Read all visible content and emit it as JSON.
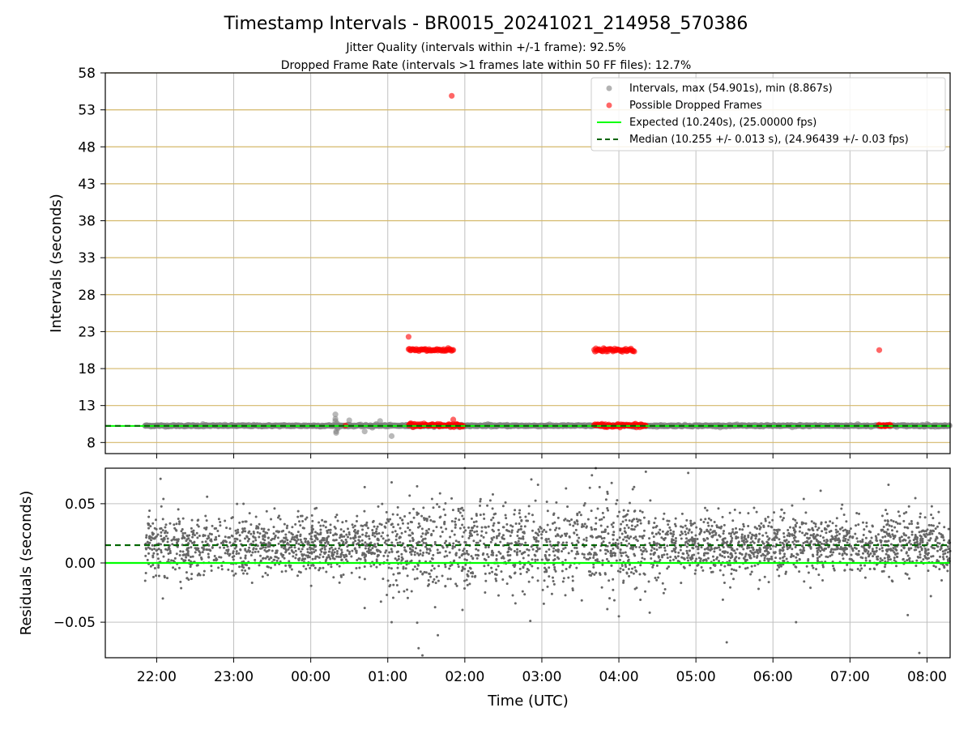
{
  "chart_data": [
    {
      "type": "scatter",
      "title": "Timestamp Intervals - BR0015_20241021_214958_570386",
      "subtitle_lines": [
        "Jitter Quality (intervals within +/-1 frame): 92.5%",
        "Dropped Frame Rate (intervals >1 frames late within 50 FF files): 12.7%"
      ],
      "ylabel": "Intervals (seconds)",
      "xlabel": "",
      "xlim": [
        21.333,
        32.3
      ],
      "ylim": [
        6.5,
        58
      ],
      "x_ticks": [
        22,
        23,
        24,
        25,
        26,
        27,
        28,
        29,
        30,
        31,
        32
      ],
      "x_tick_labels": [
        "22:00",
        "23:00",
        "00:00",
        "01:00",
        "02:00",
        "03:00",
        "04:00",
        "05:00",
        "06:00",
        "07:00",
        "08:00"
      ],
      "y_ticks": [
        8,
        13,
        18,
        23,
        28,
        33,
        38,
        43,
        48,
        53,
        58
      ],
      "y_tick_labels": [
        "8",
        "13",
        "18",
        "23",
        "28",
        "33",
        "38",
        "43",
        "48",
        "53",
        "58"
      ],
      "grid": true,
      "legend_position": "top-right",
      "series": [
        {
          "name": "Intervals, max (54.901s), min (8.867s)",
          "kind": "points",
          "color": "#808080",
          "points": [
            [
              21.85,
              10.27
            ],
            [
              22.1,
              10.25
            ],
            [
              22.33,
              10.28
            ],
            [
              22.6,
              10.5
            ],
            [
              22.75,
              10.3
            ],
            [
              23.0,
              10.24
            ],
            [
              23.25,
              10.3
            ],
            [
              23.5,
              10.29
            ],
            [
              23.75,
              10.27
            ],
            [
              24.0,
              10.3
            ],
            [
              24.2,
              10.3
            ],
            [
              24.32,
              11.8
            ],
            [
              24.32,
              11.2
            ],
            [
              24.32,
              10.9
            ],
            [
              24.33,
              9.5
            ],
            [
              24.33,
              9.3
            ],
            [
              24.34,
              10.6
            ],
            [
              24.35,
              9.9
            ],
            [
              24.48,
              10.4
            ],
            [
              24.5,
              11.0
            ],
            [
              24.7,
              9.5
            ],
            [
              24.8,
              10.0
            ],
            [
              24.85,
              10.5
            ],
            [
              24.9,
              10.9
            ],
            [
              24.95,
              10.3
            ],
            [
              25.05,
              8.87
            ],
            [
              25.15,
              10.3
            ],
            [
              25.6,
              10.3
            ],
            [
              25.95,
              10.26
            ],
            [
              26.2,
              10.3
            ],
            [
              26.3,
              10.5
            ],
            [
              26.55,
              10.4
            ],
            [
              26.9,
              10.29
            ],
            [
              27.05,
              10.3
            ],
            [
              27.4,
              10.31
            ],
            [
              27.7,
              10.3
            ],
            [
              28.4,
              10.27
            ],
            [
              28.7,
              10.3
            ],
            [
              29.0,
              10.28
            ],
            [
              29.3,
              10.3
            ],
            [
              29.6,
              10.26
            ],
            [
              29.9,
              10.3
            ],
            [
              30.25,
              10.05
            ],
            [
              30.35,
              10.4
            ],
            [
              30.55,
              10.4
            ],
            [
              30.85,
              10.3
            ],
            [
              31.1,
              10.5
            ],
            [
              31.7,
              10.3
            ],
            [
              31.95,
              10.2
            ],
            [
              32.0,
              10.5
            ],
            [
              32.1,
              10.3
            ]
          ],
          "dense_band": [
            {
              "x_start": 21.85,
              "x_end": 32.3,
              "y": 10.27
            }
          ]
        },
        {
          "name": "Possible Dropped Frames",
          "kind": "points",
          "color": "#ff0000",
          "points": [
            [
              24.45,
              10.3
            ],
            [
              25.27,
              22.3
            ],
            [
              25.85,
              11.1
            ],
            [
              25.83,
              54.9
            ],
            [
              31.38,
              20.5
            ],
            [
              25.3,
              10.6
            ],
            [
              25.9,
              10.35
            ]
          ],
          "clusters": [
            {
              "x_start": 25.27,
              "x_end": 25.85,
              "y": 20.5
            },
            {
              "x_start": 25.27,
              "x_end": 25.98,
              "y": 10.3
            },
            {
              "x_start": 27.68,
              "x_end": 28.2,
              "y": 20.5
            },
            {
              "x_start": 27.68,
              "x_end": 28.35,
              "y": 10.3
            },
            {
              "x_start": 31.37,
              "x_end": 31.53,
              "y": 10.3
            }
          ]
        },
        {
          "name": "Expected (10.240s), (25.00000 fps)",
          "kind": "hline",
          "color": "#00ff00",
          "y": 10.24
        },
        {
          "name": "Median (10.255 +/- 0.013 s), (24.96439 +/- 0.03 fps)",
          "kind": "hline-dashed",
          "color": "#006400",
          "y": 10.255
        }
      ]
    },
    {
      "type": "scatter",
      "title": "",
      "xlabel": "Time (UTC)",
      "ylabel": "Residuals (seconds)",
      "xlim": [
        21.333,
        32.3
      ],
      "ylim": [
        -0.08,
        0.08
      ],
      "x_ticks": [
        22,
        23,
        24,
        25,
        26,
        27,
        28,
        29,
        30,
        31,
        32
      ],
      "x_tick_labels": [
        "22:00",
        "23:00",
        "00:00",
        "01:00",
        "02:00",
        "03:00",
        "04:00",
        "05:00",
        "06:00",
        "07:00",
        "08:00"
      ],
      "y_ticks": [
        -0.05,
        0.0,
        0.05
      ],
      "y_tick_labels": [
        "−0.05",
        "0.00",
        "0.05"
      ],
      "grid": true,
      "series": [
        {
          "name": "",
          "kind": "residual-cloud",
          "color": "#666666",
          "x_range": [
            21.85,
            32.3
          ],
          "center": 0.015,
          "spread": 0.012,
          "outliers": [
            [
              22.05,
              0.071
            ],
            [
              22.08,
              -0.03
            ],
            [
              24.7,
              0.064
            ],
            [
              24.7,
              -0.038
            ],
            [
              25.05,
              0.068
            ],
            [
              25.05,
              -0.05
            ],
            [
              25.4,
              -0.072
            ],
            [
              25.45,
              -0.078
            ],
            [
              25.65,
              -0.061
            ],
            [
              26.0,
              0.08
            ],
            [
              26.2,
              0.052
            ],
            [
              26.85,
              -0.049
            ],
            [
              26.95,
              0.066
            ],
            [
              27.65,
              0.074
            ],
            [
              27.7,
              0.08
            ],
            [
              27.75,
              0.064
            ],
            [
              27.85,
              0.06
            ],
            [
              27.85,
              -0.039
            ],
            [
              28.0,
              -0.045
            ],
            [
              28.35,
              0.077
            ],
            [
              28.4,
              -0.042
            ],
            [
              28.9,
              0.076
            ],
            [
              29.35,
              -0.031
            ],
            [
              29.4,
              -0.067
            ],
            [
              30.3,
              -0.05
            ],
            [
              30.4,
              0.054
            ],
            [
              31.5,
              0.066
            ],
            [
              31.75,
              -0.044
            ],
            [
              31.9,
              -0.076
            ],
            [
              32.05,
              -0.028
            ]
          ]
        },
        {
          "name": "",
          "kind": "hline",
          "color": "#00ff00",
          "y": 0.0
        },
        {
          "name": "",
          "kind": "hline-dashed",
          "color": "#006400",
          "y": 0.015
        }
      ]
    }
  ],
  "colors": {
    "interval_gray": "#808080",
    "dropped_red": "#ff0000",
    "expected_green": "#00ff00",
    "median_darkgreen": "#006400",
    "hgrid_gold": "#d4b86a",
    "grid_gray": "#c0c0c0"
  }
}
